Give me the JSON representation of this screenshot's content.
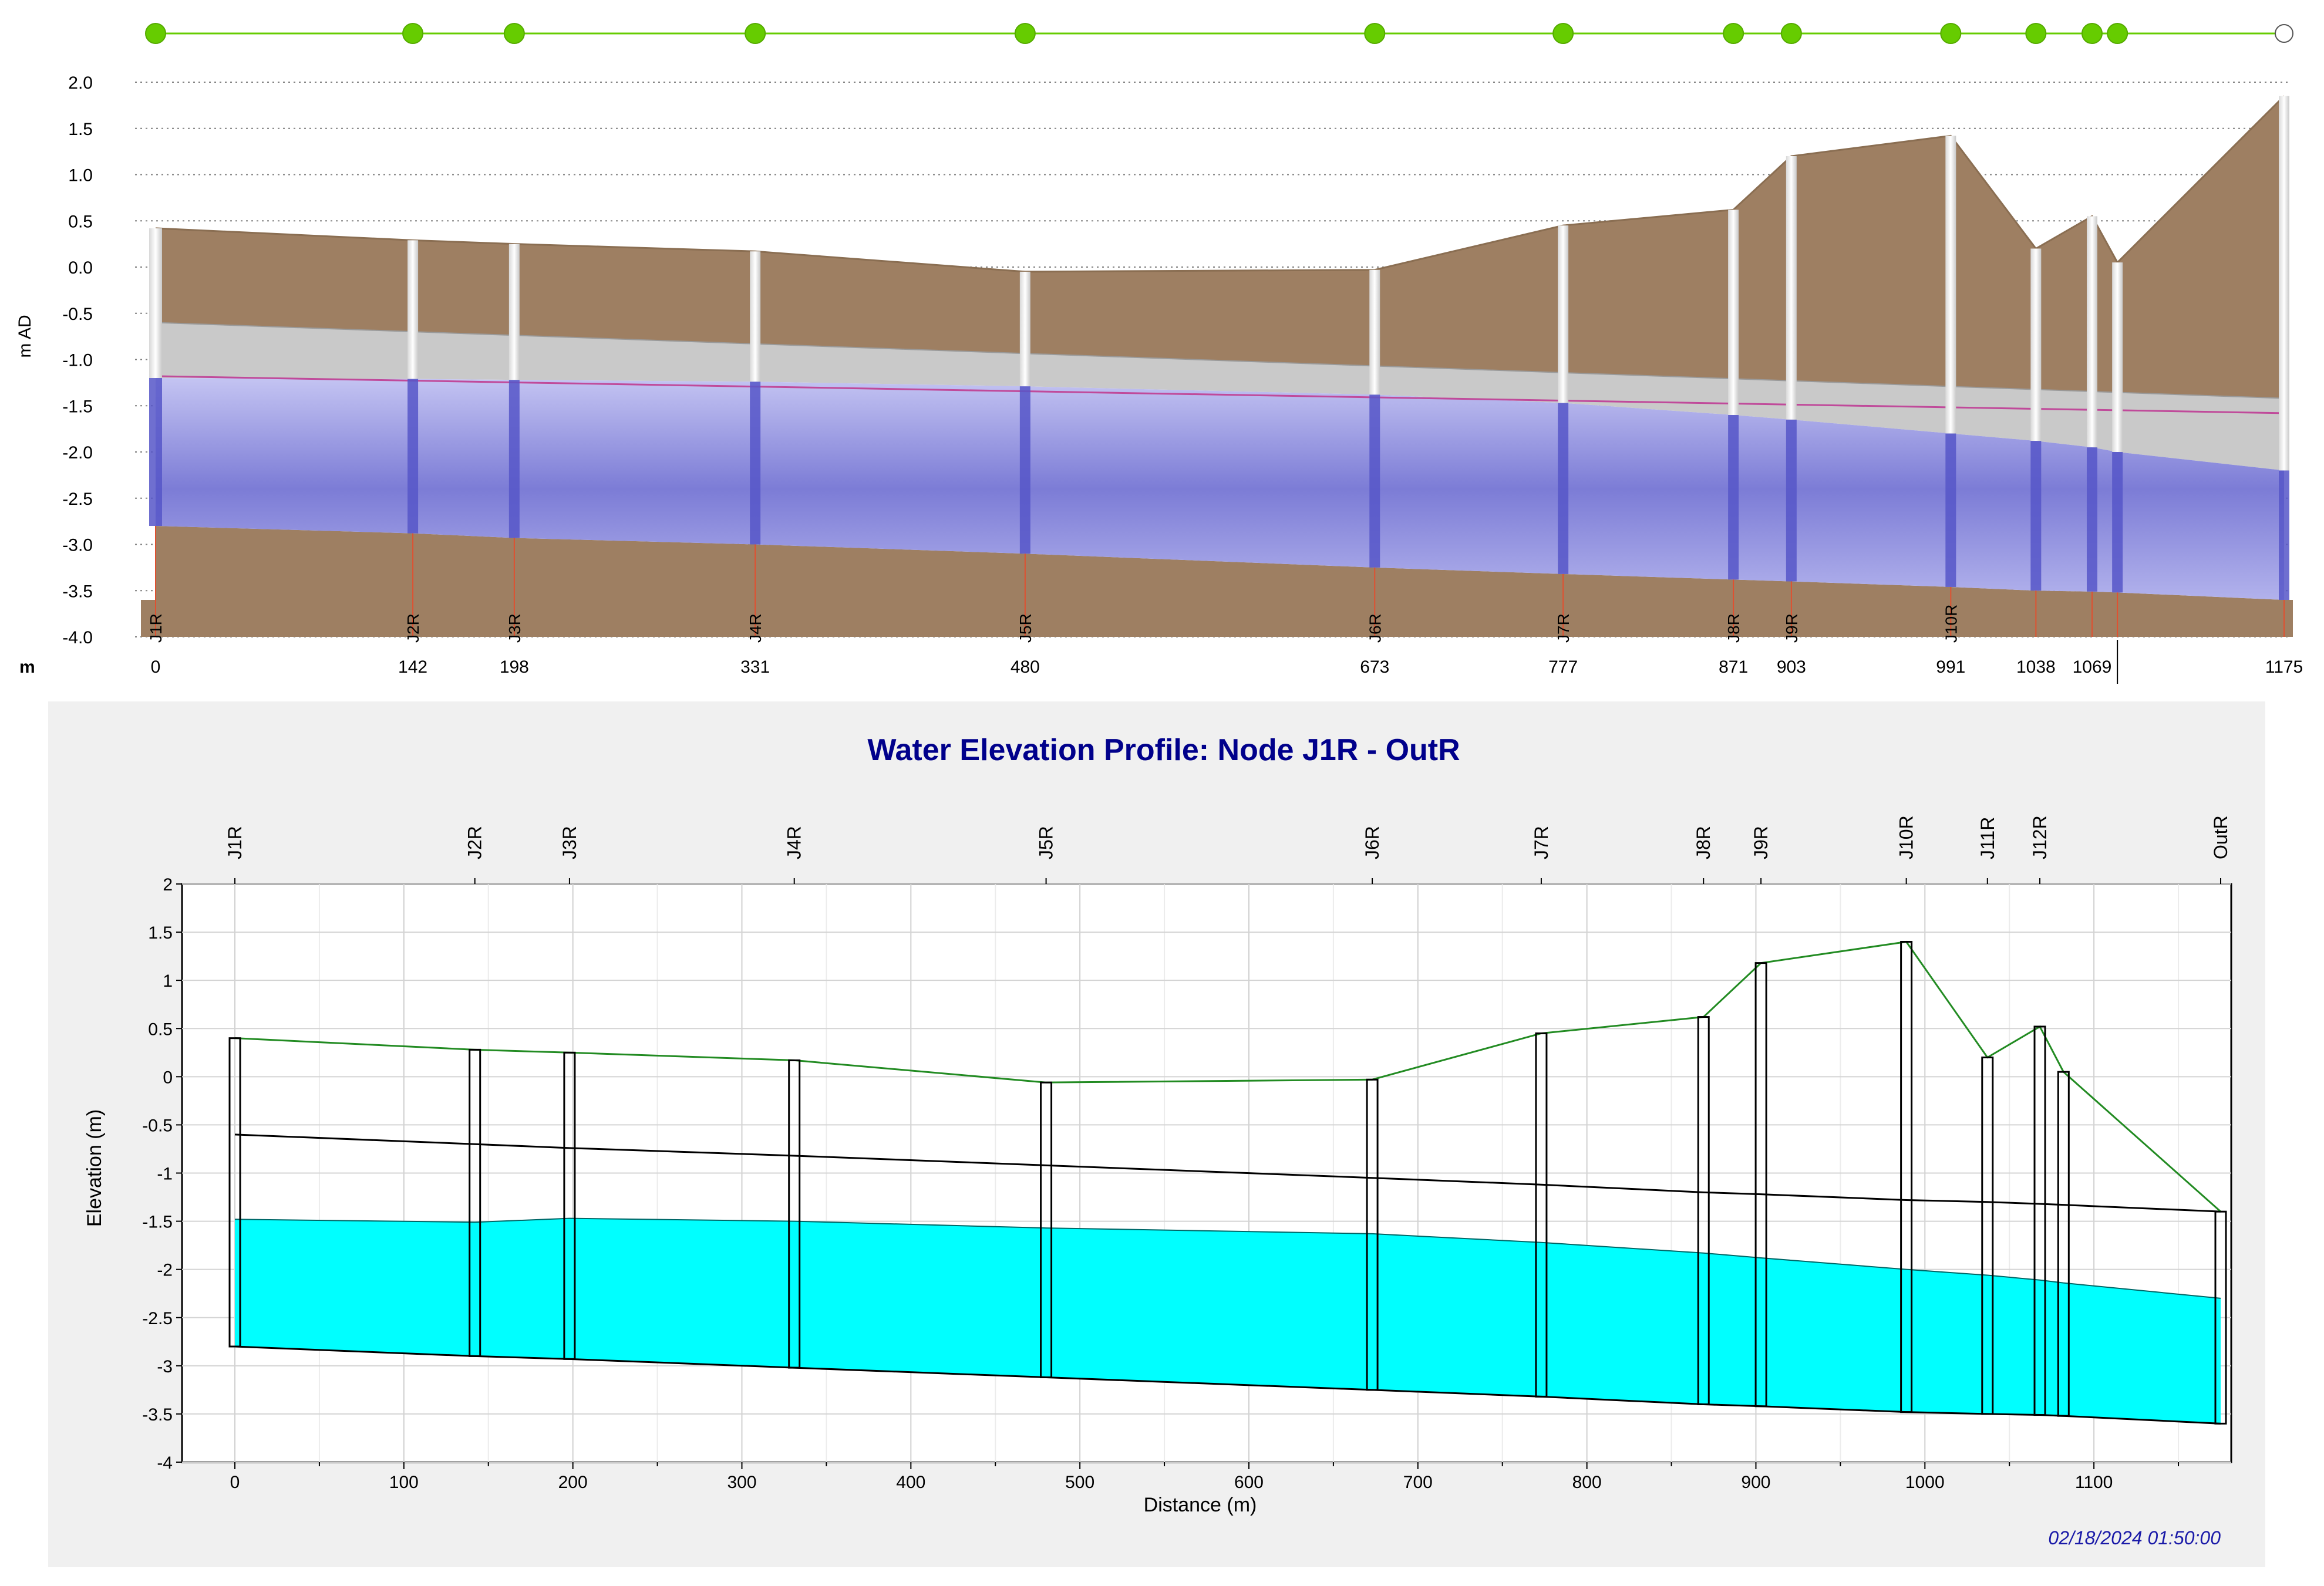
{
  "chart_data": [
    {
      "type": "line",
      "name": "long-section-profile",
      "ylabel": "m AD",
      "xunit_label": "m",
      "ylim": [
        -4.0,
        2.0
      ],
      "xlim": [
        0,
        1175
      ],
      "yticks": [
        "2.0",
        "1.5",
        "1.0",
        "0.5",
        "0.0",
        "-0.5",
        "-1.0",
        "-1.5",
        "-2.0",
        "-2.5",
        "-3.0",
        "-3.5",
        "-4.0"
      ],
      "node_markers": [
        0,
        142,
        198,
        331,
        480,
        673,
        777,
        871,
        903,
        991,
        1038,
        1069,
        1083,
        1175
      ],
      "nodes": [
        {
          "name": "J1R",
          "x": 0,
          "x_label": "0",
          "ground": 0.42,
          "invert": -2.8,
          "water": -1.2
        },
        {
          "name": "J2R",
          "x": 142,
          "x_label": "142",
          "ground": 0.29,
          "invert": -2.88,
          "water": -1.21
        },
        {
          "name": "J3R",
          "x": 198,
          "x_label": "198",
          "ground": 0.25,
          "invert": -2.93,
          "water": -1.22
        },
        {
          "name": "J4R",
          "x": 331,
          "x_label": "331",
          "ground": 0.17,
          "invert": -3.0,
          "water": -1.24
        },
        {
          "name": "J5R",
          "x": 480,
          "x_label": "480",
          "ground": -0.05,
          "invert": -3.1,
          "water": -1.29
        },
        {
          "name": "J6R",
          "x": 673,
          "x_label": "673",
          "ground": -0.03,
          "invert": -3.25,
          "water": -1.38
        },
        {
          "name": "J7R",
          "x": 777,
          "x_label": "777",
          "ground": 0.45,
          "invert": -3.32,
          "water": -1.47
        },
        {
          "name": "J8R",
          "x": 871,
          "x_label": "871",
          "ground": 0.62,
          "invert": -3.38,
          "water": -1.6
        },
        {
          "name": "J9R",
          "x": 903,
          "x_label": "903",
          "ground": 1.2,
          "invert": -3.4,
          "water": -1.65
        },
        {
          "name": "J10R",
          "x": 991,
          "x_label": "991",
          "ground": 1.42,
          "invert": -3.46,
          "water": -1.8
        },
        {
          "name": "",
          "x": 1038,
          "x_label": "1038",
          "ground": 0.2,
          "invert": -3.5,
          "water": -1.88
        },
        {
          "name": "",
          "x": 1069,
          "x_label": "1069",
          "ground": 0.55,
          "invert": -3.51,
          "water": -1.95
        },
        {
          "name": "",
          "x": 1083,
          "x_label": "",
          "ground": 0.05,
          "invert": -3.52,
          "water": -2.0
        },
        {
          "name": "",
          "x": 1175,
          "x_label": "1175",
          "ground": 1.85,
          "invert": -3.6,
          "water": -2.2
        }
      ],
      "crown_line": {
        "x": [
          0,
          1175
        ],
        "y": [
          -0.6,
          -1.42
        ]
      },
      "overflow_line": {
        "x": [
          0,
          1175
        ],
        "y": [
          -1.18,
          -1.58
        ]
      }
    },
    {
      "type": "area",
      "name": "water-elevation-profile",
      "title": "Water Elevation Profile: Node J1R - OutR",
      "xlabel": "Distance (m)",
      "ylabel": "Elevation (m)",
      "timestamp": "02/18/2024 01:50:00",
      "xlim": [
        0,
        1175
      ],
      "ylim": [
        -4,
        2
      ],
      "xticks": [
        0,
        100,
        200,
        300,
        400,
        500,
        600,
        700,
        800,
        900,
        1000,
        1100
      ],
      "ytick_labels": [
        "2",
        "1.5",
        "1",
        "0.5",
        "0",
        "-0.5",
        "-1",
        "-1.5",
        "-2",
        "-2.5",
        "-3",
        "-3.5",
        "-4"
      ],
      "nodes": [
        {
          "name": "J1R",
          "x": 0,
          "ground": 0.4,
          "invert": -2.8,
          "water": -1.48,
          "crown": -0.6
        },
        {
          "name": "J2R",
          "x": 142,
          "ground": 0.28,
          "invert": -2.9,
          "water": -1.51,
          "crown": -0.7
        },
        {
          "name": "J3R",
          "x": 198,
          "ground": 0.25,
          "invert": -2.93,
          "water": -1.47,
          "crown": -0.74
        },
        {
          "name": "J4R",
          "x": 331,
          "ground": 0.17,
          "invert": -3.02,
          "water": -1.5,
          "crown": -0.82
        },
        {
          "name": "J5R",
          "x": 480,
          "ground": -0.06,
          "invert": -3.12,
          "water": -1.57,
          "crown": -0.92
        },
        {
          "name": "J6R",
          "x": 673,
          "ground": -0.03,
          "invert": -3.25,
          "water": -1.63,
          "crown": -1.05
        },
        {
          "name": "J7R",
          "x": 773,
          "ground": 0.45,
          "invert": -3.32,
          "water": -1.72,
          "crown": -1.12
        },
        {
          "name": "J8R",
          "x": 869,
          "ground": 0.62,
          "invert": -3.4,
          "water": -1.83,
          "crown": -1.2
        },
        {
          "name": "J9R",
          "x": 903,
          "ground": 1.18,
          "invert": -3.42,
          "water": -1.88,
          "crown": -1.22
        },
        {
          "name": "J10R",
          "x": 989,
          "ground": 1.4,
          "invert": -3.48,
          "water": -2.0,
          "crown": -1.28
        },
        {
          "name": "J11R",
          "x": 1037,
          "ground": 0.2,
          "invert": -3.5,
          "water": -2.06,
          "crown": -1.3
        },
        {
          "name": "J12R",
          "x": 1068,
          "ground": 0.52,
          "invert": -3.51,
          "water": -2.11,
          "crown": -1.32
        },
        {
          "name": "",
          "x": 1082,
          "ground": 0.05,
          "invert": -3.52,
          "water": -2.14,
          "crown": -1.33
        },
        {
          "name": "OutR",
          "x": 1175,
          "ground": -1.4,
          "invert": -3.6,
          "water": -2.3,
          "crown": -1.4
        }
      ]
    }
  ],
  "colors": {
    "ground_fill": "#9e7f62",
    "pipe_band": "#c9c9c9",
    "water_top": "#b8b8ee",
    "water_mid": "#7f7fd8",
    "node_green": "#66cc00",
    "water_cyan": "#00ffff",
    "title_blue": "#00008b",
    "ground_line": "#228b22",
    "timestamp_blue": "#1a1aa8"
  }
}
